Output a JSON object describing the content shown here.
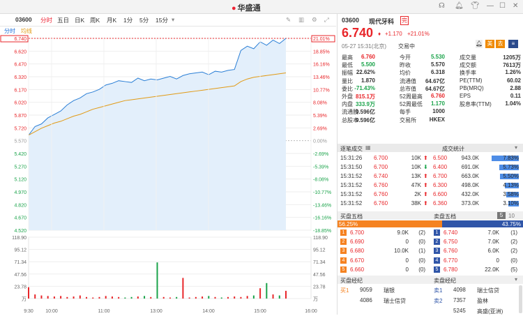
{
  "app": {
    "name": "华盛通",
    "window_controls": [
      "headset-icon",
      "bell-icon",
      "shirt-icon",
      "minimize-icon",
      "maximize-icon",
      "close-icon"
    ]
  },
  "toolbar": {
    "code": "03600",
    "periods": [
      "分时",
      "五日",
      "日K",
      "周K",
      "月K",
      "1分",
      "5分",
      "15分"
    ],
    "active": "分时"
  },
  "subtabs": {
    "tab1": "分时",
    "tab2": "均线"
  },
  "chart_data": {
    "type": "line",
    "series": [],
    "y_price_ticks": [
      "6.740",
      "6.620",
      "6.470",
      "6.320",
      "6.170",
      "6.020",
      "5.870",
      "5.720",
      "5.570",
      "5.420",
      "5.270",
      "5.120",
      "4.970",
      "4.820",
      "4.670",
      "4.520"
    ],
    "y_pct_ticks": [
      "21.01%",
      "18.85%",
      "16.16%",
      "13.46%",
      "10.77%",
      "8.08%",
      "5.39%",
      "2.69%",
      "0.00%",
      "-2.69%",
      "-5.39%",
      "-8.08%",
      "-10.77%",
      "-13.46%",
      "-16.16%",
      "-18.85%"
    ],
    "vol_ticks": [
      "118.90",
      "95.12",
      "71.34",
      "47.56",
      "23.78",
      "万"
    ],
    "x_ticks": [
      "9:30",
      "10:00",
      "11:00",
      "13:00",
      "14:00",
      "15:00",
      "16:00"
    ],
    "price": [
      5.62,
      5.72,
      5.75,
      5.82,
      5.86,
      5.9,
      5.97,
      6.02,
      6.05,
      6.1,
      6.12,
      6.15,
      6.2,
      6.22,
      6.25,
      6.24,
      6.23,
      6.28,
      6.25,
      6.27,
      6.26,
      6.28,
      6.3,
      6.27,
      6.31,
      6.33,
      6.34,
      6.35,
      6.32,
      6.36,
      6.35,
      6.37,
      6.38,
      6.6,
      6.65,
      6.62,
      6.7,
      6.66,
      6.72,
      6.68,
      6.74
    ],
    "avg": [
      5.62,
      5.66,
      5.7,
      5.73,
      5.76,
      5.78,
      5.81,
      5.84,
      5.86,
      5.89,
      5.92,
      5.94,
      5.96,
      5.98,
      6.0,
      6.02,
      6.03,
      6.04,
      6.05,
      6.06,
      6.07,
      6.08,
      6.09,
      6.1,
      6.11,
      6.12,
      6.13,
      6.14,
      6.15,
      6.16,
      6.17,
      6.18,
      6.19,
      6.24,
      6.27,
      6.29,
      6.3,
      6.31,
      6.32,
      6.33,
      6.34
    ],
    "volume": [
      22,
      8,
      6,
      5,
      4,
      5,
      3,
      4,
      6,
      3,
      2,
      3,
      5,
      4,
      3,
      2,
      3,
      4,
      5,
      3,
      70,
      3,
      2,
      3,
      40,
      2,
      3,
      4,
      5,
      3,
      2,
      3,
      4,
      3,
      5,
      6,
      20,
      30,
      8,
      6,
      15
    ],
    "prev_close": 5.57
  },
  "stock": {
    "code": "03600",
    "name": "现代牙科",
    "tag": "完",
    "price": "6.740",
    "change": "+1.170",
    "change_pct": "+21.01%",
    "time": "05-27 15:31(北京)",
    "status": "交易中",
    "badges": [
      "bell-icon",
      "美",
      "去"
    ]
  },
  "stats": [
    [
      "最高",
      "6.760",
      "今开",
      "5.530",
      "成交量",
      "1205万"
    ],
    [
      "最低",
      "5.500",
      "昨收",
      "5.570",
      "成交额",
      "7613万"
    ],
    [
      "振幅",
      "22.62%",
      "均价",
      "6.318",
      "换手率",
      "1.26%"
    ],
    [
      "量比",
      "1.870",
      "流通值",
      "64.67亿",
      "PE(TTM)",
      "60.02"
    ],
    [
      "委比",
      "-71.43%",
      "总市值",
      "64.67亿",
      "PB(MRQ)",
      "2.88"
    ],
    [
      "外盘",
      "815.1万",
      "52周最高",
      "6.760",
      "EPS",
      "0.11"
    ],
    [
      "内盘",
      "333.9万",
      "52周最低",
      "1.170",
      "股息率(TTM)",
      "1.04%"
    ],
    [
      "流通股",
      "9.596亿",
      "每手",
      "1000",
      "",
      ""
    ],
    [
      "总股本",
      "9.596亿",
      "交易所",
      "HKEX",
      "",
      ""
    ]
  ],
  "trades_header": {
    "left": "逐笔成交",
    "right": "成交统计"
  },
  "trades": [
    [
      "15:31:26",
      "6.700",
      "10K",
      "up"
    ],
    [
      "15:31:50",
      "6.700",
      "10K",
      "down"
    ],
    [
      "15:31:52",
      "6.740",
      "13K",
      "up"
    ],
    [
      "15:31:52",
      "6.760",
      "47K",
      "up"
    ],
    [
      "15:31:52",
      "6.760",
      "2K",
      "up"
    ],
    [
      "15:31:52",
      "6.760",
      "38K",
      "up"
    ]
  ],
  "trade_stats": [
    [
      "6.500",
      "943.0K",
      "7.83%",
      0.78
    ],
    [
      "6.400",
      "691.0K",
      "5.73%",
      0.57
    ],
    [
      "6.700",
      "663.0K",
      "5.50%",
      0.55
    ],
    [
      "6.300",
      "498.0K",
      "4.13%",
      0.41
    ],
    [
      "6.600",
      "432.0K",
      "3.58%",
      0.36
    ],
    [
      "6.360",
      "373.0K",
      "3.10%",
      0.31
    ]
  ],
  "book": {
    "buy_title": "买盘五档",
    "sell_title": "卖盘五档",
    "buy_pct": "56.25%",
    "sell_pct": "43.75%",
    "level_buttons": [
      "5",
      "10"
    ],
    "bids": [
      [
        "1",
        "6.700",
        "9.0K",
        "(2)"
      ],
      [
        "2",
        "6.690",
        "0",
        "(0)"
      ],
      [
        "3",
        "6.680",
        "10.0K",
        "(1)"
      ],
      [
        "4",
        "6.670",
        "0",
        "(0)"
      ],
      [
        "5",
        "6.660",
        "0",
        "(0)"
      ]
    ],
    "asks": [
      [
        "1",
        "6.740",
        "7.0K",
        "(1)"
      ],
      [
        "2",
        "6.750",
        "7.0K",
        "(2)"
      ],
      [
        "3",
        "6.760",
        "6.0K",
        "(2)"
      ],
      [
        "4",
        "6.770",
        "0",
        "(0)"
      ],
      [
        "5",
        "6.780",
        "22.0K",
        "(5)"
      ]
    ]
  },
  "brokers": {
    "buy_title": "买盘经纪",
    "sell_title": "卖盘经纪",
    "buy": [
      [
        "买1",
        "9059",
        "瑞银"
      ],
      [
        "",
        "4086",
        "瑞士信贷"
      ]
    ],
    "sell": [
      [
        "卖1",
        "4098",
        "瑞士信贷"
      ],
      [
        "卖2",
        "7357",
        "盈林"
      ],
      [
        "",
        "5245",
        "高盛(亚洲)"
      ]
    ]
  }
}
